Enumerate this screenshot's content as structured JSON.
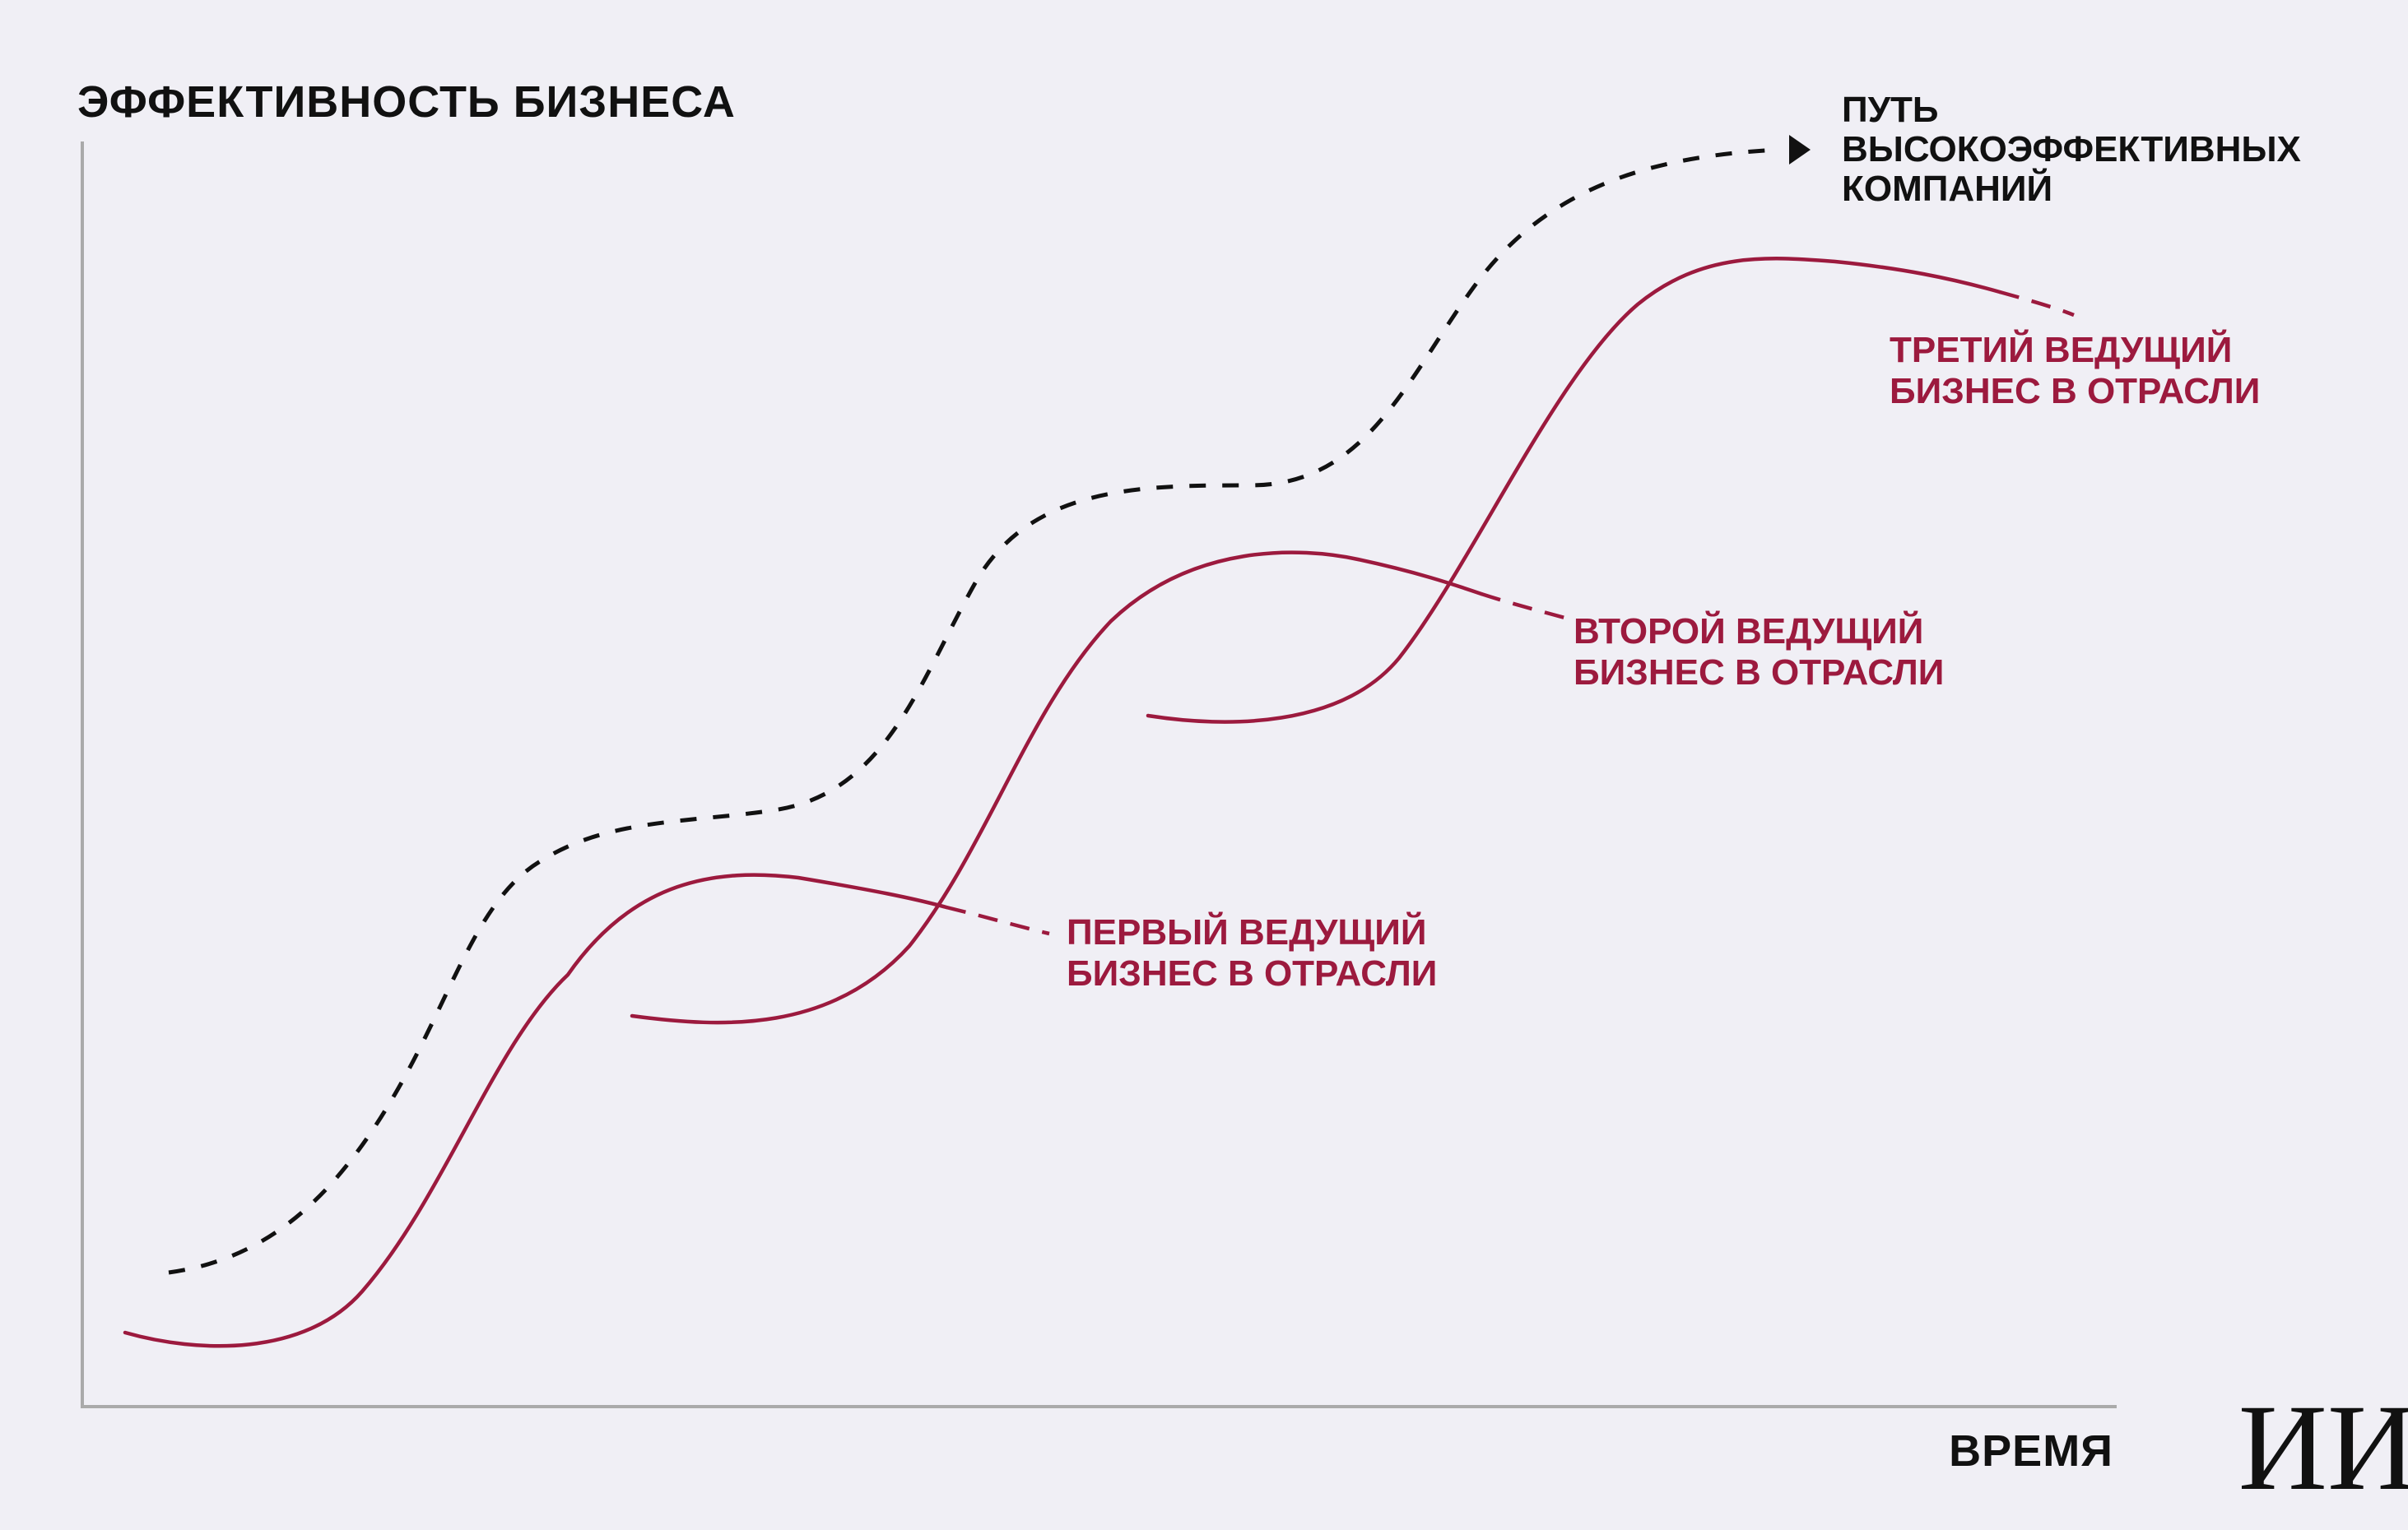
{
  "title": "ЭФФЕКТИВНОСТЬ БИЗНЕСА",
  "x_axis_label": "ВРЕМЯ",
  "logo": "ИИ",
  "high_performance_path": {
    "lines": [
      "ПУТЬ",
      "ВЫСОКОЭФФЕКТИВНЫХ",
      "КОМПАНИЙ"
    ]
  },
  "businesses": [
    {
      "lines": [
        "ПЕРВЫЙ ВЕДУЩИЙ",
        "БИЗНЕС В ОТРАСЛИ"
      ]
    },
    {
      "lines": [
        "ВТОРОЙ ВЕДУЩИЙ",
        "БИЗНЕС В ОТРАСЛИ"
      ]
    },
    {
      "lines": [
        "ТРЕТИЙ ВЕДУЩИЙ",
        "БИЗНЕС В ОТРАСЛИ"
      ]
    }
  ],
  "colors": {
    "background": "#f0eff5",
    "axis": "#aaaaaa",
    "business_curve": "#9c1a3e",
    "path_curve": "#111111",
    "text": "#111111"
  }
}
